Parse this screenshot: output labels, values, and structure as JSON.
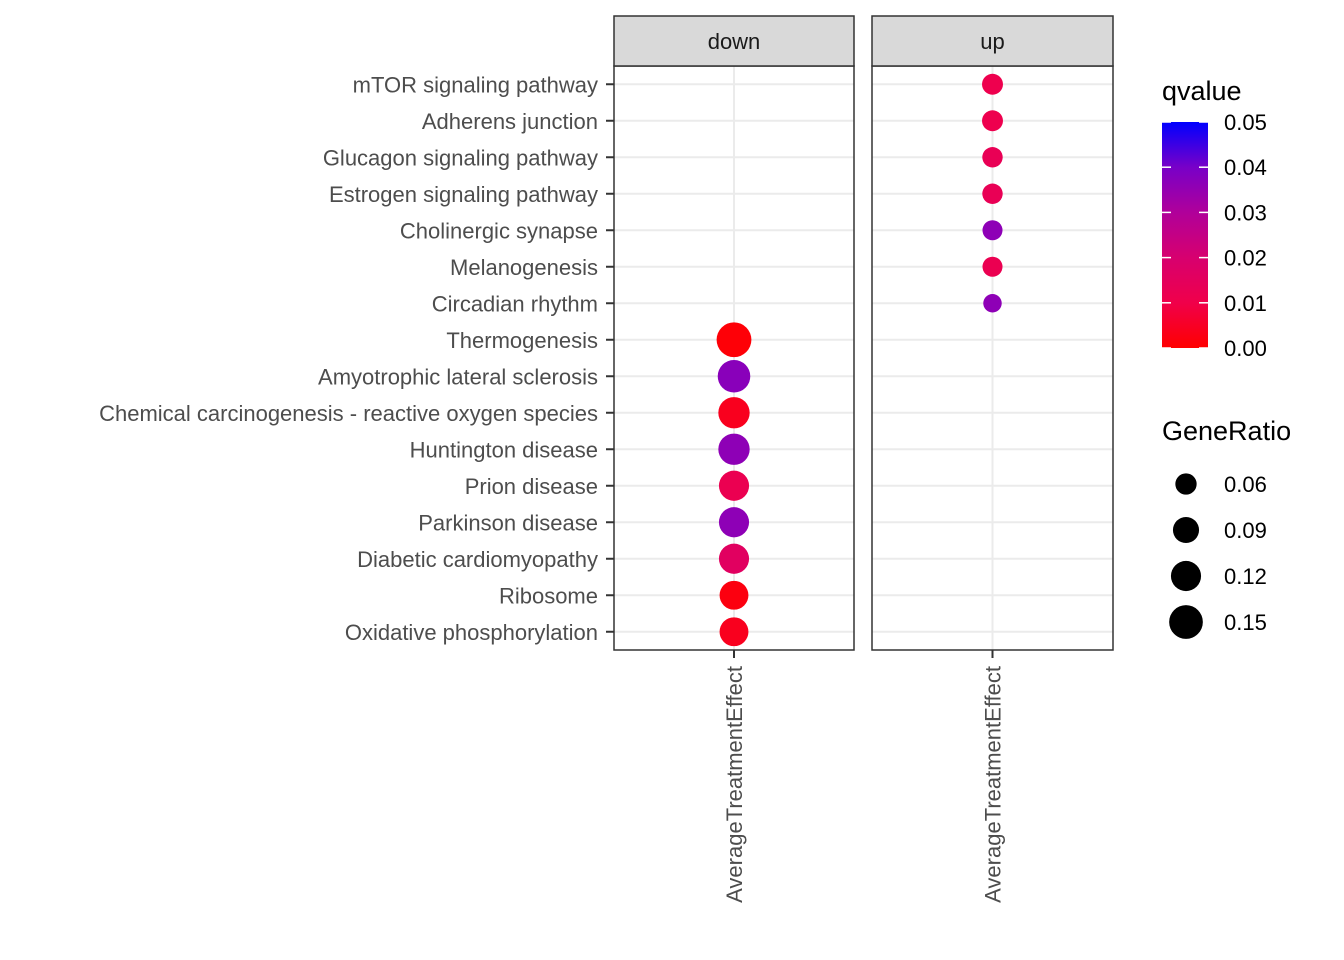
{
  "chart_data": {
    "type": "scatter",
    "facets": [
      "down",
      "up"
    ],
    "x_label_per_facet": "AverageTreatmentEffect",
    "categories": [
      "mTOR signaling pathway",
      "Adherens junction",
      "Glucagon signaling pathway",
      "Estrogen signaling pathway",
      "Cholinergic synapse",
      "Melanogenesis",
      "Circadian rhythm",
      "Thermogenesis",
      "Amyotrophic lateral sclerosis",
      "Chemical carcinogenesis - reactive oxygen species",
      "Huntington disease",
      "Prion disease",
      "Parkinson disease",
      "Diabetic cardiomyopathy",
      "Ribosome",
      "Oxidative phosphorylation"
    ],
    "points": [
      {
        "facet": "up",
        "category": "mTOR signaling pathway",
        "qvalue": 0.011,
        "gene_ratio": 0.058
      },
      {
        "facet": "up",
        "category": "Adherens junction",
        "qvalue": 0.011,
        "gene_ratio": 0.058
      },
      {
        "facet": "up",
        "category": "Glucagon signaling pathway",
        "qvalue": 0.013,
        "gene_ratio": 0.055
      },
      {
        "facet": "up",
        "category": "Estrogen signaling pathway",
        "qvalue": 0.013,
        "gene_ratio": 0.055
      },
      {
        "facet": "up",
        "category": "Cholinergic synapse",
        "qvalue": 0.036,
        "gene_ratio": 0.053
      },
      {
        "facet": "up",
        "category": "Melanogenesis",
        "qvalue": 0.012,
        "gene_ratio": 0.053
      },
      {
        "facet": "up",
        "category": "Circadian rhythm",
        "qvalue": 0.036,
        "gene_ratio": 0.045
      },
      {
        "facet": "down",
        "category": "Thermogenesis",
        "qvalue": 0.001,
        "gene_ratio": 0.16
      },
      {
        "facet": "down",
        "category": "Amyotrophic lateral sclerosis",
        "qvalue": 0.037,
        "gene_ratio": 0.14
      },
      {
        "facet": "down",
        "category": "Chemical carcinogenesis - reactive oxygen species",
        "qvalue": 0.004,
        "gene_ratio": 0.13
      },
      {
        "facet": "down",
        "category": "Huntington disease",
        "qvalue": 0.036,
        "gene_ratio": 0.13
      },
      {
        "facet": "down",
        "category": "Prion disease",
        "qvalue": 0.012,
        "gene_ratio": 0.12
      },
      {
        "facet": "down",
        "category": "Parkinson disease",
        "qvalue": 0.036,
        "gene_ratio": 0.12
      },
      {
        "facet": "down",
        "category": "Diabetic cardiomyopathy",
        "qvalue": 0.016,
        "gene_ratio": 0.12
      },
      {
        "facet": "down",
        "category": "Ribosome",
        "qvalue": 0.002,
        "gene_ratio": 0.11
      },
      {
        "facet": "down",
        "category": "Oxidative phosphorylation",
        "qvalue": 0.004,
        "gene_ratio": 0.11
      }
    ],
    "color_legend": {
      "title": "qvalue",
      "range": [
        0,
        0.05
      ],
      "low_color": "#ff0000",
      "high_color": "#0000ff",
      "ticks": [
        "0.00",
        "0.01",
        "0.02",
        "0.03",
        "0.04",
        "0.05"
      ]
    },
    "size_legend": {
      "title": "GeneRatio",
      "values": [
        0.06,
        0.09,
        0.12,
        0.15
      ],
      "labels": [
        "0.06",
        "0.09",
        "0.12",
        "0.15"
      ]
    },
    "grid": true,
    "legend_position": "right"
  }
}
